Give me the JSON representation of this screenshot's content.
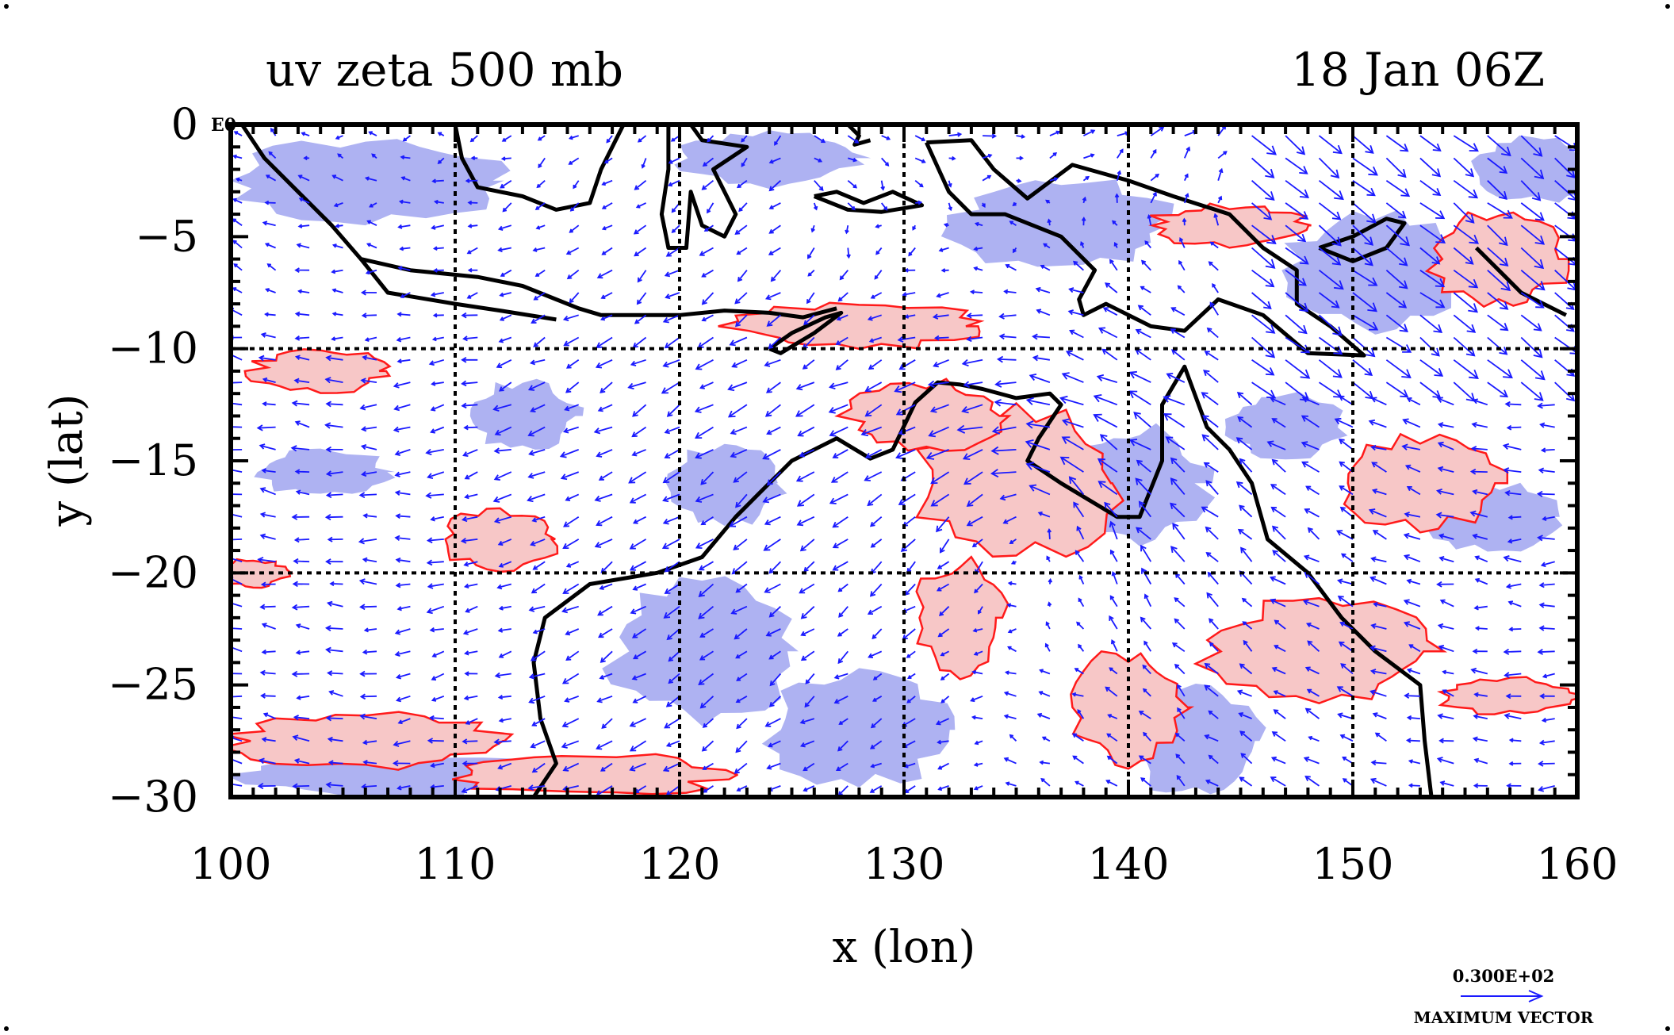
{
  "chart_data": {
    "type": "vector-field-map",
    "title_left": "uv zeta 500 mb",
    "title_right": "18 Jan 06Z",
    "corner_tag": "E0",
    "xlabel": "x (lon)",
    "ylabel": "y (lat)",
    "xlim": [
      100,
      160
    ],
    "ylim": [
      -30,
      0
    ],
    "xticks": [
      100,
      110,
      120,
      130,
      140,
      150,
      160
    ],
    "yticks": [
      0,
      -5,
      -10,
      -15,
      -20,
      -25,
      -30
    ],
    "xtick_labels": [
      "100",
      "110",
      "120",
      "130",
      "140",
      "150",
      "160"
    ],
    "ytick_labels": [
      "0",
      "−5",
      "−10",
      "−15",
      "−20",
      "−25",
      "−30"
    ],
    "grid_lines_lon": [
      110,
      120,
      130,
      140,
      150
    ],
    "grid_lines_lat": [
      -10,
      -20
    ],
    "grid": true,
    "vector_legend": {
      "value": "0.300E+02",
      "label": "MAXIMUM VECTOR"
    },
    "colors": {
      "vector": "#1a1aff",
      "positive_fill": "#f7c7c7",
      "positive_contour": "#ff1a1a",
      "negative_fill": "#aeb2f2",
      "coastline": "#000000",
      "frame": "#000000"
    },
    "positive_zeta_regions": [
      {
        "lon": 135,
        "lat": -16,
        "rlon": 4.5,
        "rlat": 3.2
      },
      {
        "lon": 131,
        "lat": -13,
        "rlon": 3.5,
        "rlat": 1.5
      },
      {
        "lon": 128,
        "lat": -9,
        "rlon": 5.5,
        "rlat": 1.0
      },
      {
        "lon": 106,
        "lat": -27.5,
        "rlon": 6,
        "rlat": 1.2
      },
      {
        "lon": 116,
        "lat": -29,
        "rlon": 6,
        "rlat": 0.9
      },
      {
        "lon": 104,
        "lat": -11,
        "rlon": 3,
        "rlat": 0.9
      },
      {
        "lon": 112,
        "lat": -18.5,
        "rlon": 2.5,
        "rlat": 1.3
      },
      {
        "lon": 153,
        "lat": -16,
        "rlon": 3.5,
        "rlat": 2
      },
      {
        "lon": 148.5,
        "lat": -23.5,
        "rlon": 5,
        "rlat": 2.2
      },
      {
        "lon": 156.5,
        "lat": -6,
        "rlon": 3,
        "rlat": 2.2
      },
      {
        "lon": 144.5,
        "lat": -4.5,
        "rlon": 3.5,
        "rlat": 0.9
      },
      {
        "lon": 140,
        "lat": -26,
        "rlon": 2.5,
        "rlat": 2.5
      },
      {
        "lon": 132.5,
        "lat": -22,
        "rlon": 2,
        "rlat": 2.5
      },
      {
        "lon": 157,
        "lat": -25.5,
        "rlon": 3,
        "rlat": 0.8
      },
      {
        "lon": 101,
        "lat": -20,
        "rlon": 1.5,
        "rlat": 0.6
      }
    ],
    "negative_zeta_regions": [
      {
        "lon": 106,
        "lat": -2.5,
        "rlon": 6,
        "rlat": 1.8
      },
      {
        "lon": 124,
        "lat": -1.5,
        "rlon": 4,
        "rlat": 1.2
      },
      {
        "lon": 137,
        "lat": -4.5,
        "rlon": 5,
        "rlat": 2
      },
      {
        "lon": 151,
        "lat": -6.5,
        "rlon": 4,
        "rlat": 2.5
      },
      {
        "lon": 158,
        "lat": -2,
        "rlon": 2.5,
        "rlat": 1.5
      },
      {
        "lon": 104,
        "lat": -15.5,
        "rlon": 3,
        "rlat": 1
      },
      {
        "lon": 122,
        "lat": -16,
        "rlon": 2.5,
        "rlat": 1.8
      },
      {
        "lon": 121,
        "lat": -23.5,
        "rlon": 4,
        "rlat": 3
      },
      {
        "lon": 128,
        "lat": -27,
        "rlon": 4,
        "rlat": 2.5
      },
      {
        "lon": 143,
        "lat": -27.5,
        "rlon": 3,
        "rlat": 2.5
      },
      {
        "lon": 140.5,
        "lat": -16,
        "rlon": 3,
        "rlat": 2.5
      },
      {
        "lon": 156,
        "lat": -17.5,
        "rlon": 3,
        "rlat": 1.5
      },
      {
        "lon": 107,
        "lat": -29,
        "rlon": 7,
        "rlat": 1
      },
      {
        "lon": 113,
        "lat": -13,
        "rlon": 2.5,
        "rlat": 1.5
      },
      {
        "lon": 147,
        "lat": -13.5,
        "rlon": 2.5,
        "rlat": 1.5
      }
    ]
  }
}
